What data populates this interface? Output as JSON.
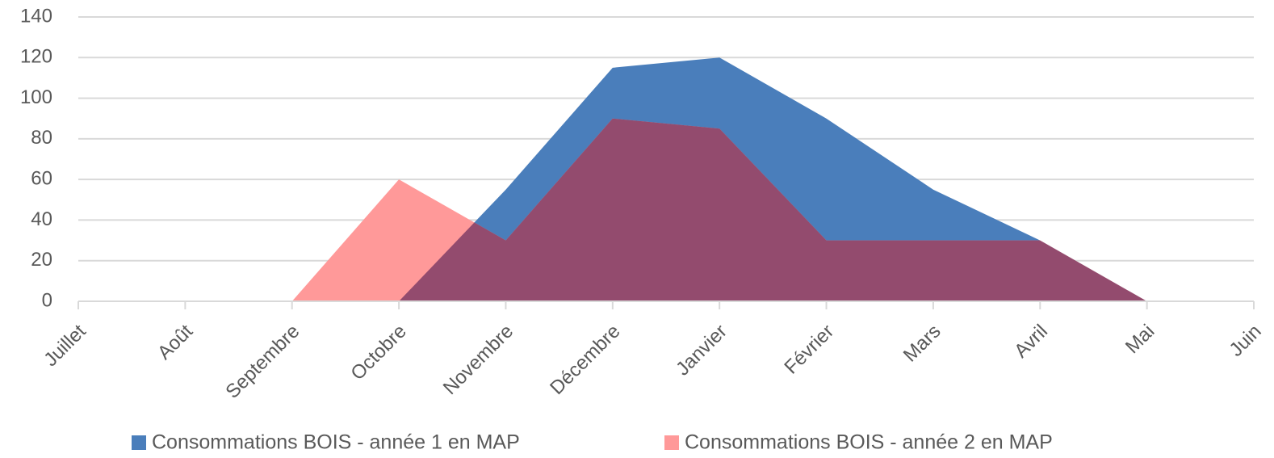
{
  "chart_data": {
    "type": "area",
    "categories": [
      "Juillet",
      "Août",
      "Septembre",
      "Octobre",
      "Novembre",
      "Décembre",
      "Janvier",
      "Février",
      "Mars",
      "Avril",
      "Mai",
      "Juin"
    ],
    "series": [
      {
        "name": "Consommations BOIS - année 1 en MAP",
        "color": "#4a7ebb",
        "values": [
          null,
          null,
          null,
          0,
          55,
          115,
          120,
          90,
          55,
          30,
          0,
          null
        ]
      },
      {
        "name": "Consommations BOIS - année 2 en MAP",
        "color": "#ff9999",
        "values": [
          null,
          null,
          0,
          60,
          30,
          90,
          85,
          30,
          30,
          30,
          0,
          null
        ]
      }
    ],
    "ylim": [
      0,
      140
    ],
    "yticks": [
      0,
      20,
      40,
      60,
      80,
      100,
      120,
      140
    ],
    "grid": true,
    "legend": "bottom"
  }
}
